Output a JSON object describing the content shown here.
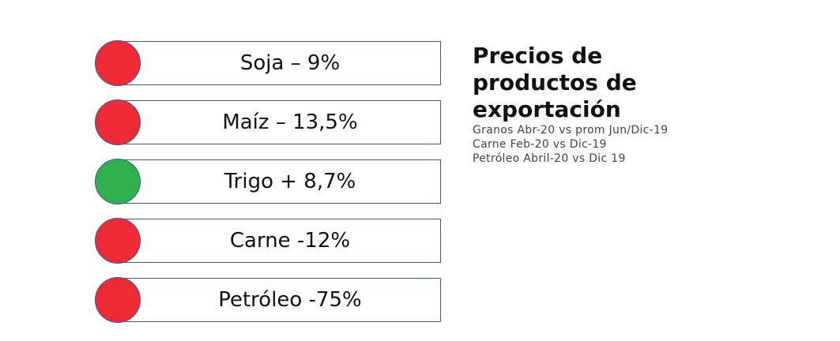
{
  "items": [
    {
      "label": "Soja – 9%",
      "status_color": "#ee2a35"
    },
    {
      "label": "Maíz – 13,5%",
      "status_color": "#ee2a35"
    },
    {
      "label": "Trigo + 8,7%",
      "status_color": "#2fb04c"
    },
    {
      "label": "Carne -12%",
      "status_color": "#ee2a35"
    },
    {
      "label": "Petróleo -75%",
      "status_color": "#ee2a35"
    }
  ],
  "title": "Precios de productos de exportación",
  "notes": [
    "Granos Abr-20 vs prom Jun/Dic-19",
    "Carne Feb-20 vs Dic-19",
    "Petróleo Abril-20 vs Dic 19"
  ]
}
